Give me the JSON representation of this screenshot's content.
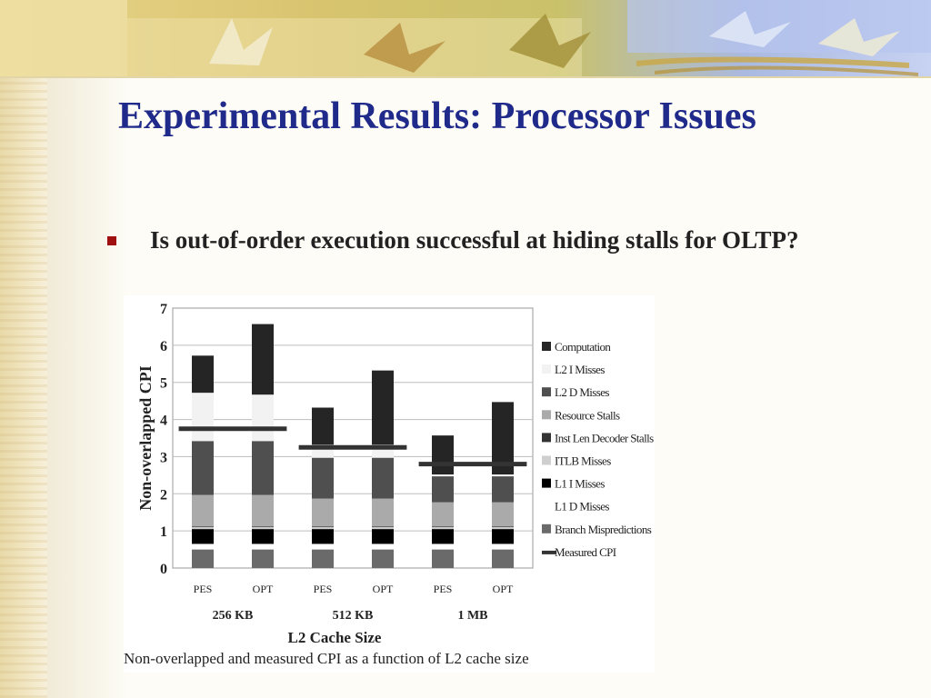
{
  "slide": {
    "title": "Experimental Results: Processor Issues",
    "bullet": "Is out-of-order execution successful at hiding stalls for OLTP?"
  },
  "chart_data": {
    "type": "bar",
    "stacked": true,
    "ylabel": "Non-overlapped CPI",
    "xlabel": "L2 Cache Size",
    "caption": "Non-overlapped and measured CPI as a function of L2 cache size",
    "ylim": [
      0,
      7
    ],
    "yticks": [
      0,
      1,
      2,
      3,
      4,
      5,
      6,
      7
    ],
    "grid": "horizontal",
    "legend_position": "right",
    "categories": [
      "PES",
      "OPT",
      "PES",
      "OPT",
      "PES",
      "OPT"
    ],
    "groups": [
      {
        "label": "256 KB",
        "categories": [
          0,
          1
        ]
      },
      {
        "label": "512 KB",
        "categories": [
          2,
          3
        ]
      },
      {
        "label": "1 MB",
        "categories": [
          4,
          5
        ]
      }
    ],
    "series": [
      {
        "name": "Branch Mispredictions",
        "color": "#6a6a6a",
        "values": [
          0.5,
          0.5,
          0.5,
          0.5,
          0.5,
          0.5
        ]
      },
      {
        "name": "L1 D Misses",
        "color": "#ffffff",
        "values": [
          0.15,
          0.15,
          0.15,
          0.15,
          0.15,
          0.15
        ]
      },
      {
        "name": "L1 I Misses",
        "color": "#000000",
        "values": [
          0.4,
          0.4,
          0.4,
          0.4,
          0.4,
          0.4
        ]
      },
      {
        "name": "ITLB Misses",
        "color": "#cfcfcf",
        "values": [
          0.05,
          0.05,
          0.05,
          0.05,
          0.05,
          0.05
        ]
      },
      {
        "name": "Inst Len Decoder Stalls",
        "color": "#333333",
        "values": [
          0.02,
          0.02,
          0.02,
          0.02,
          0.02,
          0.02
        ]
      },
      {
        "name": "Resource Stalls",
        "color": "#aaaaaa",
        "values": [
          0.85,
          0.85,
          0.75,
          0.75,
          0.65,
          0.65
        ]
      },
      {
        "name": "L2 D Misses",
        "color": "#4f4f4f",
        "values": [
          1.45,
          1.45,
          1.1,
          1.1,
          0.7,
          0.7
        ]
      },
      {
        "name": "L2 I Misses",
        "color": "#f2f2f2",
        "values": [
          1.3,
          1.25,
          0.35,
          0.35,
          0.05,
          0.05
        ]
      },
      {
        "name": "Computation",
        "color": "#252525",
        "values": [
          1.0,
          1.9,
          1.0,
          2.0,
          1.05,
          1.95
        ]
      }
    ],
    "legend_order": [
      "Computation",
      "L2 I Misses",
      "L2 D Misses",
      "Resource Stalls",
      "Inst Len Decoder Stalls",
      "ITLB Misses",
      "L1 I Misses",
      "L1 D Misses",
      "Branch Mispredictions",
      "Measured CPI"
    ],
    "legend_labels": {
      "Computation": "Computation",
      "L2 I Misses": "L2 I Misses",
      "L2 D Misses": "L2 D Misses",
      "Resource Stalls": "Resource Stalls",
      "Inst Len Decoder Stalls": "Inst Len Decoder Stalls",
      "ITLB Misses": "ITLB Misses",
      "L1 I Misses": "L1 I Misses",
      "L1 D Misses": "L1 D Misses",
      "Branch Mispredictions": "Branch Mispredictions",
      "Measured CPI": "Measured CPI"
    },
    "measured_cpi": {
      "name": "Measured CPI",
      "color": "#333333",
      "values": [
        3.75,
        3.25,
        2.8
      ],
      "applies_to_groups": [
        "256 KB",
        "512 KB",
        "1 MB"
      ]
    }
  }
}
